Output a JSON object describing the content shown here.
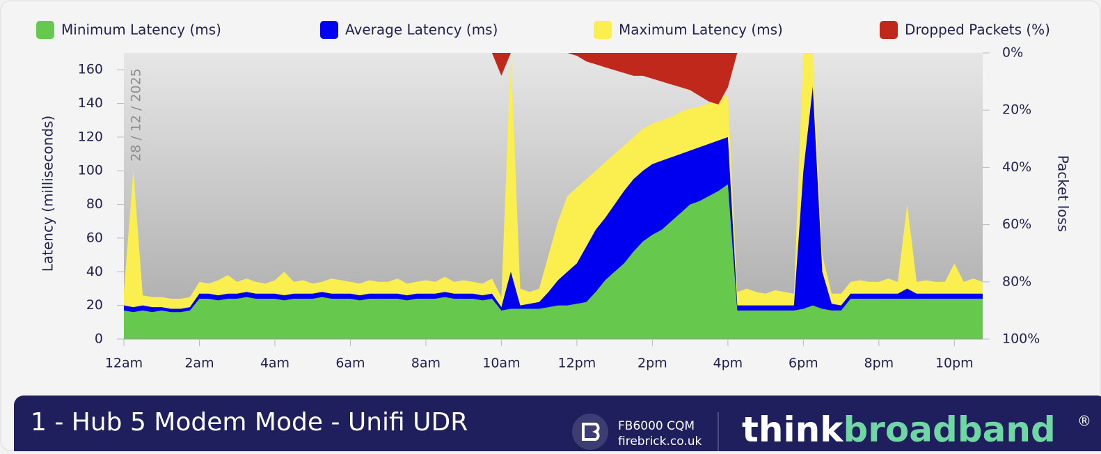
{
  "chart_data": {
    "type": "area",
    "title": "1 - Hub 5 Modem Mode - Unifi UDR",
    "date_label": "28 / 12 / 2025",
    "y_label": "Latency  (milliseconds)",
    "y2_label": "Packet loss",
    "x": [
      0,
      0.25,
      0.5,
      0.75,
      1,
      1.25,
      1.5,
      1.75,
      2,
      2.25,
      2.5,
      2.75,
      3,
      3.25,
      3.5,
      3.75,
      4,
      4.25,
      4.5,
      4.75,
      5,
      5.25,
      5.5,
      5.75,
      6,
      6.25,
      6.5,
      6.75,
      7,
      7.25,
      7.5,
      7.75,
      8,
      8.25,
      8.5,
      8.75,
      9,
      9.25,
      9.5,
      9.75,
      10,
      10.25,
      10.5,
      10.75,
      11,
      11.25,
      11.5,
      11.75,
      12,
      12.25,
      12.5,
      12.75,
      13,
      13.25,
      13.5,
      13.75,
      14,
      14.25,
      14.5,
      14.75,
      15,
      15.25,
      15.5,
      15.75,
      16,
      16.25,
      16.5,
      16.75,
      17,
      17.25,
      17.5,
      17.75,
      18,
      18.25,
      18.5,
      18.75,
      19,
      19.25,
      19.5,
      19.75,
      20,
      20.25,
      20.5,
      20.75,
      21,
      21.25,
      21.5,
      21.75,
      22,
      22.25,
      22.5,
      22.75
    ],
    "xlim": [
      0,
      22.75
    ],
    "xticks": [
      {
        "value": 0,
        "label": "12am"
      },
      {
        "value": 2,
        "label": "2am"
      },
      {
        "value": 4,
        "label": "4am"
      },
      {
        "value": 6,
        "label": "6am"
      },
      {
        "value": 8,
        "label": "8am"
      },
      {
        "value": 10,
        "label": "10am"
      },
      {
        "value": 12,
        "label": "12pm"
      },
      {
        "value": 14,
        "label": "2pm"
      },
      {
        "value": 16,
        "label": "4pm"
      },
      {
        "value": 18,
        "label": "6pm"
      },
      {
        "value": 20,
        "label": "8pm"
      },
      {
        "value": 22,
        "label": "10pm"
      }
    ],
    "ylim": [
      0,
      170
    ],
    "yticks": [
      0,
      20,
      40,
      60,
      80,
      100,
      120,
      140,
      160
    ],
    "y2lim": [
      100,
      0
    ],
    "y2ticks": [
      {
        "value": 0,
        "label": "0%"
      },
      {
        "value": 20,
        "label": "20%"
      },
      {
        "value": 40,
        "label": "40%"
      },
      {
        "value": 60,
        "label": "60%"
      },
      {
        "value": 80,
        "label": "80%"
      },
      {
        "value": 100,
        "label": "100%"
      }
    ],
    "series": [
      {
        "name": "Minimum Latency (ms)",
        "color": "#66c84c",
        "values": [
          17,
          16,
          17,
          16,
          17,
          16,
          16,
          17,
          24,
          24,
          23,
          24,
          24,
          25,
          24,
          24,
          24,
          23,
          24,
          24,
          24,
          25,
          24,
          24,
          24,
          23,
          24,
          24,
          24,
          24,
          23,
          24,
          24,
          24,
          25,
          24,
          24,
          24,
          23,
          24,
          17,
          18,
          18,
          18,
          18,
          19,
          20,
          20,
          21,
          22,
          28,
          35,
          40,
          45,
          52,
          58,
          62,
          65,
          70,
          75,
          80,
          82,
          85,
          88,
          92,
          17,
          17,
          17,
          17,
          17,
          17,
          17,
          18,
          20,
          18,
          17,
          17,
          24,
          24,
          24,
          24,
          24,
          24,
          24,
          24,
          24,
          24,
          24,
          24,
          24,
          24,
          24
        ]
      },
      {
        "name": "Average Latency (ms)",
        "color": "#0000f0",
        "values": [
          20,
          19,
          20,
          19,
          19,
          18,
          18,
          19,
          27,
          27,
          26,
          27,
          27,
          28,
          27,
          27,
          27,
          26,
          27,
          27,
          27,
          28,
          27,
          27,
          27,
          26,
          27,
          27,
          27,
          27,
          26,
          27,
          27,
          27,
          28,
          27,
          27,
          27,
          26,
          27,
          19,
          40,
          20,
          21,
          22,
          28,
          35,
          40,
          45,
          55,
          65,
          72,
          80,
          88,
          95,
          100,
          104,
          106,
          108,
          110,
          112,
          114,
          116,
          118,
          120,
          20,
          20,
          20,
          20,
          20,
          20,
          20,
          100,
          150,
          40,
          21,
          20,
          27,
          27,
          27,
          27,
          27,
          27,
          30,
          27,
          27,
          27,
          27,
          27,
          27,
          27,
          27
        ]
      },
      {
        "name": "Maximum Latency (ms)",
        "color": "#fbee4f",
        "values": [
          28,
          100,
          26,
          25,
          25,
          24,
          24,
          25,
          34,
          33,
          35,
          38,
          34,
          36,
          34,
          33,
          35,
          40,
          34,
          35,
          33,
          34,
          36,
          35,
          34,
          33,
          35,
          34,
          34,
          36,
          33,
          34,
          35,
          34,
          37,
          34,
          35,
          34,
          33,
          36,
          25,
          170,
          30,
          28,
          30,
          50,
          70,
          85,
          90,
          95,
          100,
          105,
          110,
          115,
          120,
          125,
          128,
          130,
          132,
          135,
          137,
          138,
          140,
          142,
          145,
          28,
          30,
          28,
          27,
          29,
          28,
          27,
          170,
          170,
          50,
          27,
          27,
          34,
          35,
          34,
          34,
          36,
          34,
          80,
          34,
          35,
          34,
          34,
          45,
          34,
          36,
          34
        ]
      },
      {
        "name": "Dropped Packets (%)",
        "color": "#c0281c",
        "axis": "y2",
        "values": [
          0,
          0,
          0,
          0,
          0,
          0,
          0,
          0,
          0,
          0,
          0,
          0,
          0,
          0,
          0,
          0,
          0,
          0,
          0,
          0,
          0,
          0,
          0,
          0,
          0,
          0,
          0,
          0,
          0,
          0,
          0,
          0,
          0,
          0,
          0,
          0,
          0,
          0,
          0,
          0,
          8,
          0,
          0,
          0,
          0,
          0,
          0,
          0,
          1,
          3,
          4,
          5,
          6,
          7,
          8,
          8,
          9,
          10,
          11,
          12,
          13,
          15,
          17,
          18,
          12,
          0,
          0,
          0,
          0,
          0,
          0,
          0,
          0,
          0,
          0,
          0,
          0,
          0,
          0,
          0,
          0,
          0,
          0,
          0,
          0,
          0,
          0,
          0,
          0,
          0,
          0,
          0
        ]
      }
    ],
    "footer": {
      "device": "FB6000 CQM",
      "device_site": "firebrick.co.uk",
      "brand_a": "think",
      "brand_b": "broadband",
      "brand_mark": "®"
    }
  }
}
